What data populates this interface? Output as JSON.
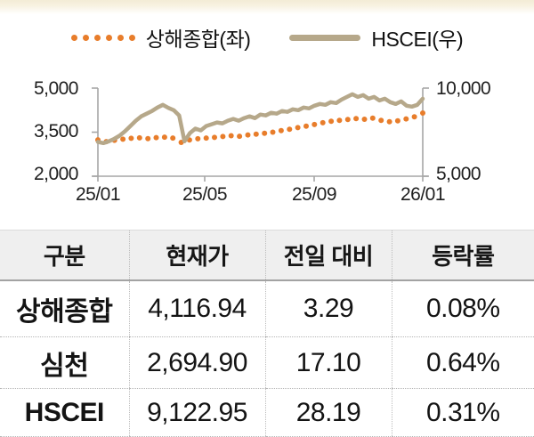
{
  "colors": {
    "shanghai": "#e87d2b",
    "hscei": "#b6a88a",
    "axis": "#a6a6a6",
    "top_strip": "#f5eedb",
    "header_bg": "#efefef"
  },
  "legend": {
    "items": [
      {
        "label": "상해종합(좌)",
        "marker": "dotted"
      },
      {
        "label": "HSCEI(우)",
        "marker": "line"
      }
    ]
  },
  "chart_data": {
    "type": "line",
    "title": "",
    "xlabel": "",
    "ylabel_left": "",
    "ylabel_right": "",
    "grid": false,
    "legend_position": "top",
    "x_tick_labels": [
      "25/01",
      "25/05",
      "25/09",
      "26/01"
    ],
    "left_axis": {
      "min": 2000,
      "max": 5000,
      "tick_labels": [
        "5,000",
        "3,500",
        "2,000"
      ]
    },
    "right_axis": {
      "min": 5000,
      "max": 10000,
      "tick_labels": [
        "10,000",
        "5,000"
      ]
    },
    "series": [
      {
        "name": "상해종합(좌)",
        "axis": "left",
        "style": "dotted",
        "color": "#e87d2b",
        "values": [
          3240,
          3180,
          3225,
          3260,
          3290,
          3305,
          3280,
          3315,
          3330,
          3300,
          3150,
          3235,
          3275,
          3300,
          3320,
          3350,
          3380,
          3360,
          3405,
          3430,
          3460,
          3500,
          3550,
          3600,
          3655,
          3705,
          3760,
          3820,
          3870,
          3900,
          3930,
          3960,
          3940,
          3980,
          3900,
          3855,
          3885,
          3950,
          4020,
          4150
        ]
      },
      {
        "name": "HSCEI(우)",
        "axis": "right",
        "style": "solid",
        "color": "#b6a88a",
        "values": [
          6950,
          6880,
          6980,
          7120,
          7300,
          7550,
          7850,
          8150,
          8400,
          8550,
          8700,
          8900,
          9050,
          8880,
          8750,
          8450,
          6980,
          7450,
          7700,
          7600,
          7850,
          7950,
          8050,
          8000,
          8150,
          8250,
          8150,
          8300,
          8400,
          8300,
          8500,
          8450,
          8600,
          8550,
          8700,
          8650,
          8800,
          8750,
          8900,
          8850,
          9000,
          9100,
          9050,
          9200,
          9150,
          9350,
          9500,
          9650,
          9500,
          9600,
          9400,
          9500,
          9300,
          9400,
          9200,
          9100,
          9250,
          9000,
          8950,
          9050,
          9400
        ]
      }
    ]
  },
  "table": {
    "headers": [
      "구분",
      "현재가",
      "전일 대비",
      "등락률"
    ],
    "rows": [
      [
        "상해종합",
        "4,116.94",
        "3.29",
        "0.08%"
      ],
      [
        "심천",
        "2,694.90",
        "17.10",
        "0.64%"
      ],
      [
        "HSCEI",
        "9,122.95",
        "28.19",
        "0.31%"
      ]
    ]
  }
}
